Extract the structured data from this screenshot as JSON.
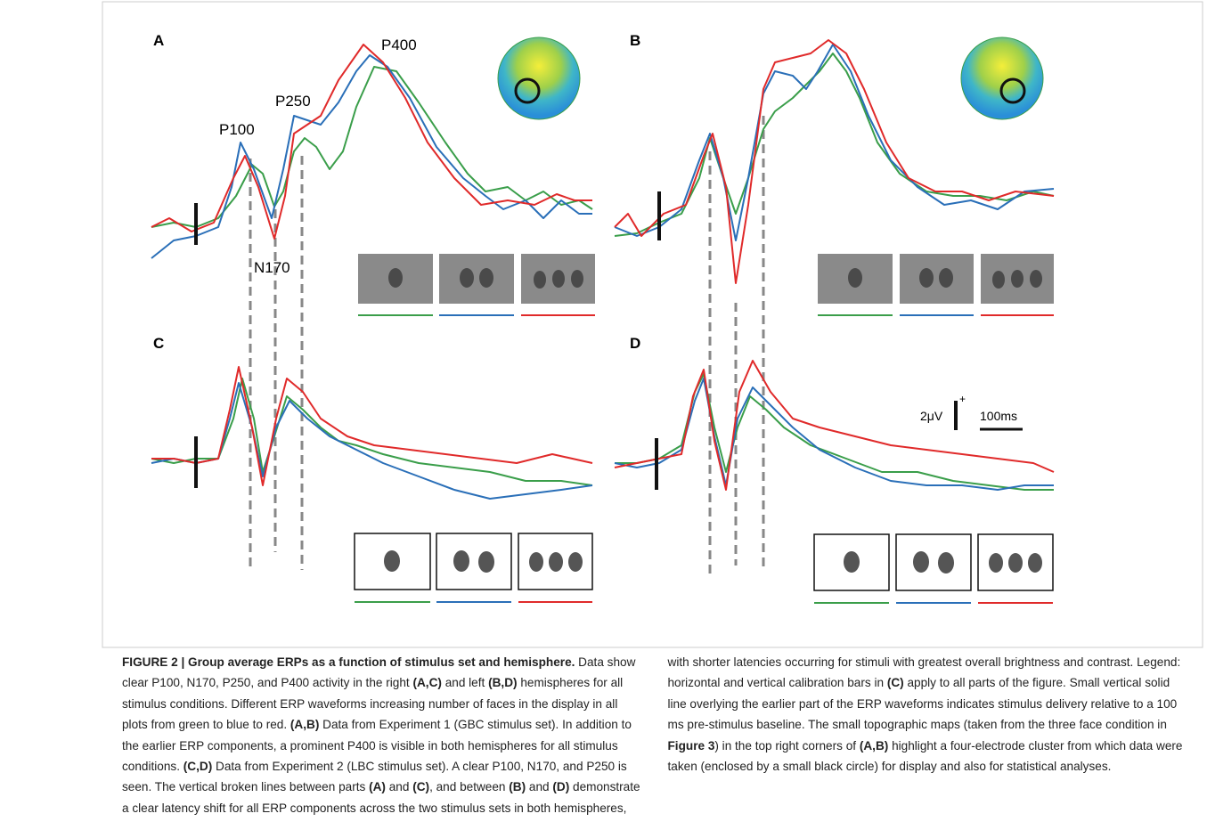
{
  "figure": {
    "panels": [
      {
        "label": "A"
      },
      {
        "label": "B"
      },
      {
        "label": "C"
      },
      {
        "label": "D"
      }
    ],
    "components": [
      "P100",
      "N170",
      "P250",
      "P400"
    ],
    "scale": {
      "amplitude": "2μV",
      "polarity": "+",
      "time": "100ms"
    }
  },
  "caption": {
    "segments": [
      {
        "text": "FIGURE 2 | Group average ERPs as a function of stimulus set and hemisphere.",
        "bold": true
      },
      {
        "text": " Data show clear P100, N170, P250, and P400 activity in the right "
      },
      {
        "text": "(A,C)",
        "bold": true
      },
      {
        "text": " and left "
      },
      {
        "text": "(B,D)",
        "bold": true
      },
      {
        "text": " hemispheres for all stimulus conditions. Different ERP waveforms increasing number of faces in the display in all plots from green to blue to red. "
      },
      {
        "text": "(A,B)",
        "bold": true
      },
      {
        "text": " Data from Experiment 1 (GBC stimulus set). In addition to the earlier ERP components, a prominent P400 is visible in both hemispheres for all stimulus conditions. "
      },
      {
        "text": "(C,D)",
        "bold": true
      },
      {
        "text": " Data from Experiment 2 (LBC stimulus set). A clear P100, N170, and P250 is seen. The vertical broken lines between parts "
      },
      {
        "text": "(A)",
        "bold": true
      },
      {
        "text": " and "
      },
      {
        "text": "(C)",
        "bold": true
      },
      {
        "text": ", and between "
      },
      {
        "text": "(B)",
        "bold": true
      },
      {
        "text": " and "
      },
      {
        "text": "(D)",
        "bold": true
      },
      {
        "text": " demonstrate a clear latency shift for all ERP components across the two stimulus sets in both hemispheres, with shorter latencies occurring for stimuli with greatest overall brightness and contrast. Legend: horizontal and vertical calibration bars in "
      },
      {
        "text": "(C)",
        "bold": true
      },
      {
        "text": " apply to all parts of the figure. Small vertical solid line overlying the earlier part of the ERP waveforms indicates stimulus delivery relative to a 100 ms pre-stimulus baseline. The small topographic maps (taken from the three face condition in "
      },
      {
        "text": "Figure 3",
        "bold": true
      },
      {
        "text": ") in the top right corners of "
      },
      {
        "text": "(A,B)",
        "bold": true
      },
      {
        "text": " highlight a four-electrode cluster from which data were taken (enclosed by a small black circle) for display and also for statistical analyses."
      }
    ]
  }
}
